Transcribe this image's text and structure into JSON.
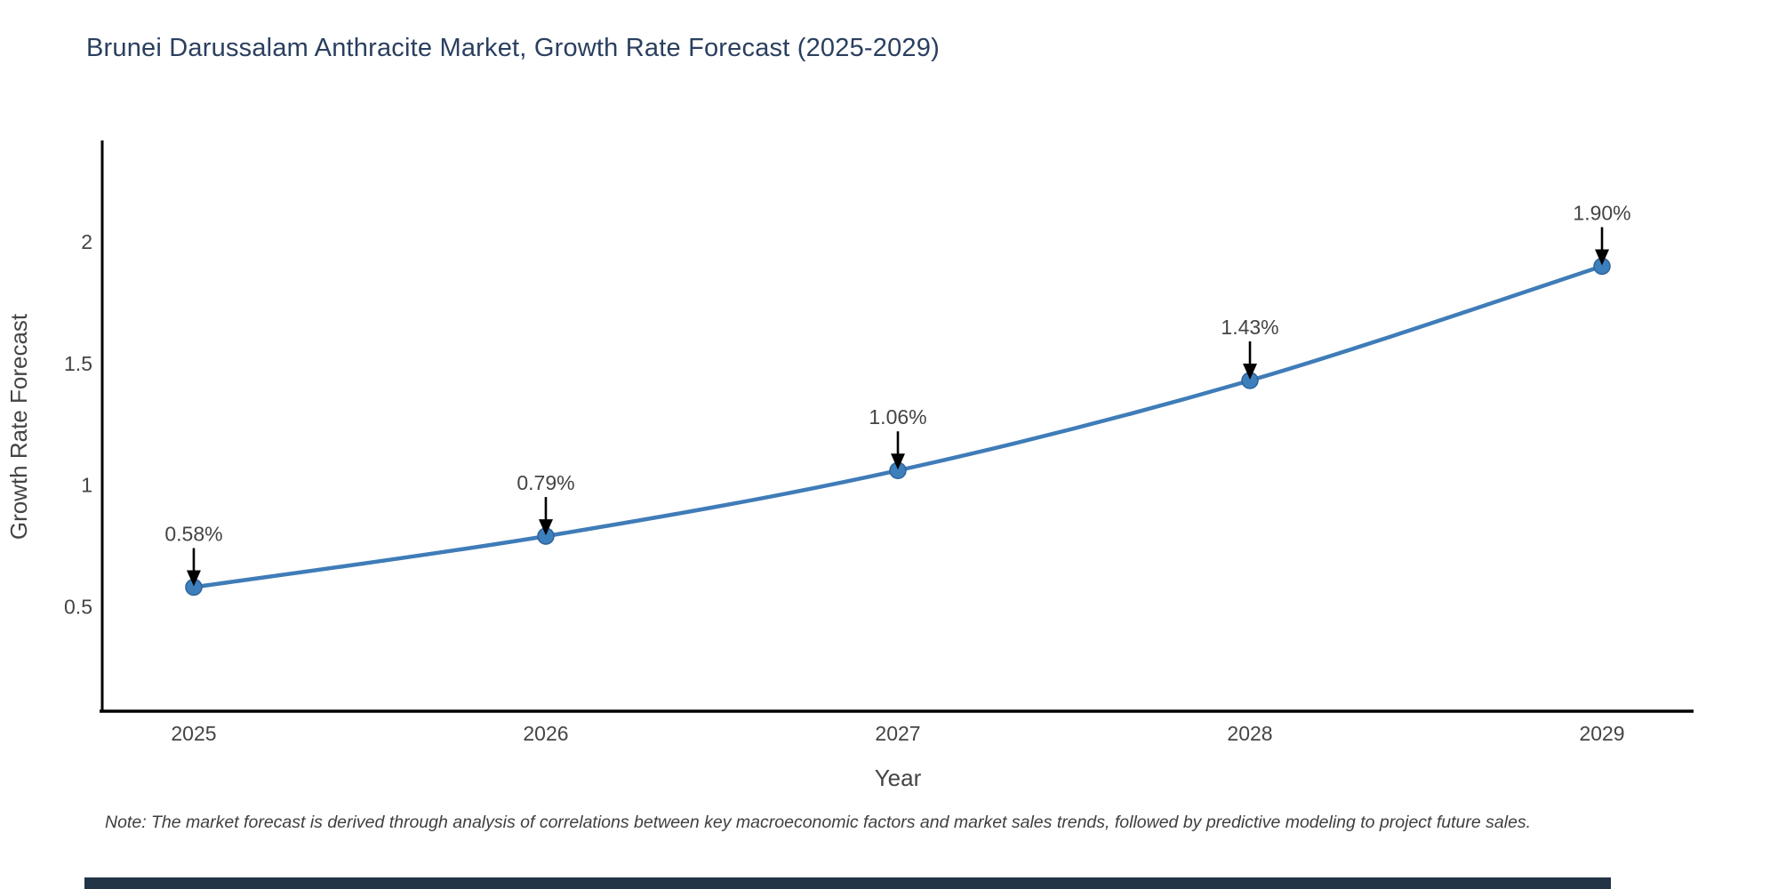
{
  "title": "Brunei Darussalam Anthracite Market, Growth Rate Forecast (2025-2029)",
  "note": "Note: The market forecast is derived through analysis of correlations between key macroeconomic factors and market sales trends, followed by predictive modeling to project future sales.",
  "chart_data": {
    "type": "line",
    "title": "Brunei Darussalam Anthracite Market, Growth Rate Forecast (2025-2029)",
    "x": [
      2025,
      2026,
      2027,
      2028,
      2029
    ],
    "y": [
      0.58,
      0.79,
      1.06,
      1.43,
      1.9
    ],
    "point_labels": [
      "0.58%",
      "0.79%",
      "1.06%",
      "1.43%",
      "1.90%"
    ],
    "xticks": [
      "2025",
      "2026",
      "2027",
      "2028",
      "2029"
    ],
    "yticks": [
      0.5,
      1,
      1.5,
      2
    ],
    "xlabel": "Year",
    "ylabel": "Growth Rate Forecast",
    "xlim": [
      2024.74,
      2029.26
    ],
    "ylim": [
      0.07,
      2.41
    ],
    "grid": false,
    "legend": "none",
    "line_smoothing": "spline"
  },
  "colors": {
    "title_text": "#2a3f5f",
    "axis_line": "#000000",
    "tick_text": "#444444",
    "axis_title_text": "#444444",
    "annotation_text": "#444444",
    "annotation_arrow": "#000000",
    "line": "#3f7cb8",
    "marker_fill": "#3d7fbb",
    "marker_stroke": "#2f639c",
    "note_text": "#3f3f3f",
    "footer_bar": "#233447"
  }
}
